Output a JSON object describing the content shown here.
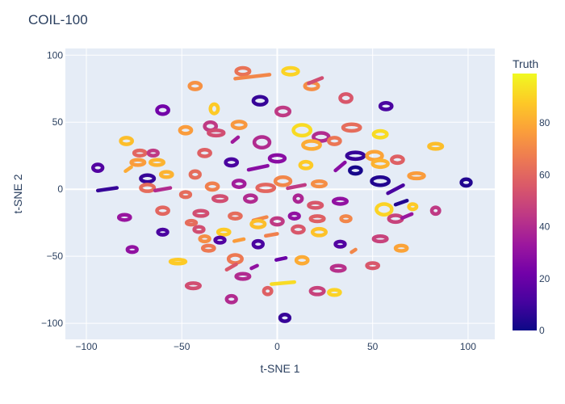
{
  "chart_data": {
    "type": "scatter",
    "title": "COIL-100",
    "xlabel": "t-SNE 1",
    "ylabel": "t-SNE 2",
    "xlim": [
      -111,
      114
    ],
    "ylim": [
      -112,
      105
    ],
    "x_ticks": [
      -100,
      -50,
      0,
      50,
      100
    ],
    "y_ticks": [
      -100,
      -50,
      0,
      50,
      100
    ],
    "x_tick_labels": [
      "−100",
      "−50",
      "0",
      "50",
      "100"
    ],
    "y_tick_labels": [
      "−100",
      "−50",
      "0",
      "50",
      "100"
    ],
    "grid": true,
    "colorbar": {
      "title": "Truth",
      "range": [
        0,
        99
      ],
      "ticks": [
        0,
        20,
        40,
        60,
        80
      ],
      "tick_labels": [
        "0",
        "20",
        "40",
        "60",
        "80"
      ],
      "colorscale": [
        "#0d0887",
        "#46039f",
        "#7201a8",
        "#9c179e",
        "#bd3786",
        "#d8576b",
        "#ed7953",
        "#fb9f3a",
        "#fdca26",
        "#f0f921"
      ]
    },
    "clusters": [
      {
        "x": -43,
        "y": 77,
        "value": 73,
        "shape": "ring",
        "w": 6,
        "h": 5
      },
      {
        "x": -18,
        "y": 88,
        "value": 64,
        "shape": "ring",
        "w": 7,
        "h": 5
      },
      {
        "x": -13,
        "y": 84,
        "value": 70,
        "shape": "stroke",
        "w": 18,
        "h": 6
      },
      {
        "x": 7,
        "y": 88,
        "value": 90,
        "shape": "ring",
        "w": 8,
        "h": 5
      },
      {
        "x": 18,
        "y": 77,
        "value": 72,
        "shape": "ring",
        "w": 7,
        "h": 5
      },
      {
        "x": 20,
        "y": 81,
        "value": 52,
        "shape": "stroke",
        "w": 7,
        "h": 8
      },
      {
        "x": -9,
        "y": 66,
        "value": 8,
        "shape": "ring",
        "w": 7,
        "h": 6
      },
      {
        "x": -60,
        "y": 59,
        "value": 22,
        "shape": "ring",
        "w": 6,
        "h": 6
      },
      {
        "x": -33,
        "y": 60,
        "value": 88,
        "shape": "ring",
        "w": 4,
        "h": 7
      },
      {
        "x": 3,
        "y": 58,
        "value": 45,
        "shape": "ring",
        "w": 7,
        "h": 6
      },
      {
        "x": 36,
        "y": 68,
        "value": 55,
        "shape": "ring",
        "w": 6,
        "h": 6
      },
      {
        "x": 57,
        "y": 62,
        "value": 12,
        "shape": "ring",
        "w": 6,
        "h": 5
      },
      {
        "x": -35,
        "y": 47,
        "value": 45,
        "shape": "ring",
        "w": 6,
        "h": 6
      },
      {
        "x": -20,
        "y": 48,
        "value": 75,
        "shape": "ring",
        "w": 7,
        "h": 5
      },
      {
        "x": -48,
        "y": 44,
        "value": 76,
        "shape": "ring",
        "w": 6,
        "h": 5
      },
      {
        "x": -32,
        "y": 42,
        "value": 52,
        "shape": "ring",
        "w": 8,
        "h": 4
      },
      {
        "x": 39,
        "y": 46,
        "value": 62,
        "shape": "ring",
        "w": 9,
        "h": 5
      },
      {
        "x": 54,
        "y": 41,
        "value": 92,
        "shape": "ring",
        "w": 7,
        "h": 5
      },
      {
        "x": -79,
        "y": 36,
        "value": 85,
        "shape": "ring",
        "w": 6,
        "h": 5
      },
      {
        "x": -8,
        "y": 35,
        "value": 40,
        "shape": "ring",
        "w": 8,
        "h": 8
      },
      {
        "x": -22,
        "y": 37,
        "value": 34,
        "shape": "stroke",
        "w": 3,
        "h": 7
      },
      {
        "x": 13,
        "y": 44,
        "value": 92,
        "shape": "ring",
        "w": 9,
        "h": 8
      },
      {
        "x": 23,
        "y": 39,
        "value": 40,
        "shape": "ring",
        "w": 8,
        "h": 6
      },
      {
        "x": 18,
        "y": 33,
        "value": 80,
        "shape": "ring",
        "w": 9,
        "h": 6
      },
      {
        "x": 30,
        "y": 36,
        "value": 65,
        "shape": "ring",
        "w": 6,
        "h": 5
      },
      {
        "x": 83,
        "y": 32,
        "value": 85,
        "shape": "ring",
        "w": 7,
        "h": 4
      },
      {
        "x": -72,
        "y": 27,
        "value": 60,
        "shape": "ring",
        "w": 6,
        "h": 4
      },
      {
        "x": -65,
        "y": 27,
        "value": 45,
        "shape": "ring",
        "w": 5,
        "h": 4
      },
      {
        "x": -38,
        "y": 27,
        "value": 58,
        "shape": "ring",
        "w": 6,
        "h": 5
      },
      {
        "x": -63,
        "y": 20,
        "value": 82,
        "shape": "ring",
        "w": 7,
        "h": 4
      },
      {
        "x": -73,
        "y": 20,
        "value": 76,
        "shape": "ring",
        "w": 7,
        "h": 4
      },
      {
        "x": 0,
        "y": 23,
        "value": 28,
        "shape": "ring",
        "w": 8,
        "h": 5
      },
      {
        "x": -24,
        "y": 20,
        "value": 12,
        "shape": "ring",
        "w": 6,
        "h": 5
      },
      {
        "x": -10,
        "y": 16,
        "value": 28,
        "shape": "stroke",
        "w": 10,
        "h": 6
      },
      {
        "x": 15,
        "y": 18,
        "value": 88,
        "shape": "ring",
        "w": 6,
        "h": 5
      },
      {
        "x": 41,
        "y": 25,
        "value": 8,
        "shape": "ring",
        "w": 9,
        "h": 5
      },
      {
        "x": 51,
        "y": 25,
        "value": 78,
        "shape": "ring",
        "w": 8,
        "h": 6
      },
      {
        "x": 63,
        "y": 22,
        "value": 58,
        "shape": "ring",
        "w": 6,
        "h": 5
      },
      {
        "x": 54,
        "y": 19,
        "value": 82,
        "shape": "ring",
        "w": 8,
        "h": 5
      },
      {
        "x": 33,
        "y": 17,
        "value": 28,
        "shape": "stroke",
        "w": 5,
        "h": 12
      },
      {
        "x": 41,
        "y": 14,
        "value": 2,
        "shape": "ring",
        "w": 6,
        "h": 5
      },
      {
        "x": -94,
        "y": 16,
        "value": 14,
        "shape": "ring",
        "w": 5,
        "h": 5
      },
      {
        "x": -78,
        "y": 15,
        "value": 80,
        "shape": "stroke",
        "w": 3,
        "h": 6
      },
      {
        "x": -68,
        "y": 8,
        "value": 8,
        "shape": "ring",
        "w": 7,
        "h": 5
      },
      {
        "x": -58,
        "y": 11,
        "value": 82,
        "shape": "ring",
        "w": 6,
        "h": 4
      },
      {
        "x": -43,
        "y": 11,
        "value": 62,
        "shape": "ring",
        "w": 5,
        "h": 5
      },
      {
        "x": 3,
        "y": 6,
        "value": 70,
        "shape": "ring",
        "w": 8,
        "h": 6
      },
      {
        "x": 54,
        "y": 6,
        "value": 4,
        "shape": "ring",
        "w": 9,
        "h": 6
      },
      {
        "x": 73,
        "y": 10,
        "value": 76,
        "shape": "ring",
        "w": 8,
        "h": 4
      },
      {
        "x": 99,
        "y": 5,
        "value": 4,
        "shape": "ring",
        "w": 5,
        "h": 5
      },
      {
        "x": -68,
        "y": 1,
        "value": 62,
        "shape": "ring",
        "w": 7,
        "h": 5
      },
      {
        "x": -60,
        "y": 0,
        "value": 40,
        "shape": "stroke",
        "w": 8,
        "h": 4
      },
      {
        "x": -34,
        "y": 2,
        "value": 68,
        "shape": "ring",
        "w": 6,
        "h": 5
      },
      {
        "x": -20,
        "y": 4,
        "value": 35,
        "shape": "ring",
        "w": 6,
        "h": 5
      },
      {
        "x": -6,
        "y": 1,
        "value": 60,
        "shape": "ring",
        "w": 9,
        "h": 5
      },
      {
        "x": 10,
        "y": 2,
        "value": 45,
        "shape": "stroke",
        "w": 9,
        "h": 5
      },
      {
        "x": 22,
        "y": 4,
        "value": 72,
        "shape": "ring",
        "w": 7,
        "h": 4
      },
      {
        "x": 62,
        "y": 0,
        "value": 12,
        "shape": "stroke",
        "w": 8,
        "h": 12
      },
      {
        "x": -89,
        "y": 0,
        "value": 8,
        "shape": "stroke",
        "w": 10,
        "h": 4
      },
      {
        "x": -48,
        "y": -4,
        "value": 62,
        "shape": "ring",
        "w": 5,
        "h": 4
      },
      {
        "x": -30,
        "y": -7,
        "value": 52,
        "shape": "ring",
        "w": 7,
        "h": 4
      },
      {
        "x": -14,
        "y": -7,
        "value": 40,
        "shape": "ring",
        "w": 6,
        "h": 5
      },
      {
        "x": 11,
        "y": -7,
        "value": 38,
        "shape": "ring",
        "w": 4,
        "h": 5
      },
      {
        "x": 20,
        "y": -12,
        "value": 55,
        "shape": "ring",
        "w": 7,
        "h": 4
      },
      {
        "x": 33,
        "y": -9,
        "value": 30,
        "shape": "ring",
        "w": 7,
        "h": 4
      },
      {
        "x": 56,
        "y": -15,
        "value": 90,
        "shape": "ring",
        "w": 8,
        "h": 8
      },
      {
        "x": 65,
        "y": -10,
        "value": 4,
        "shape": "stroke",
        "w": 6,
        "h": 6
      },
      {
        "x": 71,
        "y": -13,
        "value": 88,
        "shape": "ring",
        "w": 4,
        "h": 4
      },
      {
        "x": -80,
        "y": -21,
        "value": 32,
        "shape": "ring",
        "w": 6,
        "h": 4
      },
      {
        "x": -60,
        "y": -16,
        "value": 60,
        "shape": "ring",
        "w": 6,
        "h": 5
      },
      {
        "x": -40,
        "y": -18,
        "value": 52,
        "shape": "ring",
        "w": 7,
        "h": 4
      },
      {
        "x": -22,
        "y": -20,
        "value": 62,
        "shape": "ring",
        "w": 6,
        "h": 4
      },
      {
        "x": -9,
        "y": -22,
        "value": 70,
        "shape": "stroke",
        "w": 7,
        "h": 5
      },
      {
        "x": 0,
        "y": -24,
        "value": 45,
        "shape": "ring",
        "w": 6,
        "h": 5
      },
      {
        "x": 9,
        "y": -20,
        "value": 30,
        "shape": "ring",
        "w": 5,
        "h": 4
      },
      {
        "x": 21,
        "y": -22,
        "value": 58,
        "shape": "ring",
        "w": 7,
        "h": 4
      },
      {
        "x": 36,
        "y": -22,
        "value": 70,
        "shape": "ring",
        "w": 5,
        "h": 4
      },
      {
        "x": 62,
        "y": -22,
        "value": 48,
        "shape": "ring",
        "w": 7,
        "h": 5
      },
      {
        "x": 68,
        "y": -20,
        "value": 32,
        "shape": "stroke",
        "w": 5,
        "h": 6
      },
      {
        "x": 83,
        "y": -16,
        "value": 45,
        "shape": "ring",
        "w": 4,
        "h": 5
      },
      {
        "x": -10,
        "y": -26,
        "value": 85,
        "shape": "ring",
        "w": 7,
        "h": 5
      },
      {
        "x": -45,
        "y": -25,
        "value": 62,
        "shape": "ring",
        "w": 5,
        "h": 3
      },
      {
        "x": -60,
        "y": -32,
        "value": 12,
        "shape": "ring",
        "w": 5,
        "h": 4
      },
      {
        "x": -41,
        "y": -30,
        "value": 52,
        "shape": "ring",
        "w": 5,
        "h": 4
      },
      {
        "x": -28,
        "y": -32,
        "value": 88,
        "shape": "ring",
        "w": 6,
        "h": 4
      },
      {
        "x": -38,
        "y": -37,
        "value": 72,
        "shape": "ring",
        "w": 5,
        "h": 4
      },
      {
        "x": -30,
        "y": -38,
        "value": 14,
        "shape": "ring",
        "w": 5,
        "h": 4
      },
      {
        "x": -20,
        "y": -38,
        "value": 76,
        "shape": "stroke",
        "w": 5,
        "h": 3
      },
      {
        "x": -3,
        "y": -34,
        "value": 68,
        "shape": "stroke",
        "w": 6,
        "h": 3
      },
      {
        "x": 11,
        "y": -30,
        "value": 55,
        "shape": "ring",
        "w": 6,
        "h": 5
      },
      {
        "x": 22,
        "y": -32,
        "value": 86,
        "shape": "ring",
        "w": 7,
        "h": 5
      },
      {
        "x": 54,
        "y": -37,
        "value": 48,
        "shape": "ring",
        "w": 7,
        "h": 4
      },
      {
        "x": 65,
        "y": -44,
        "value": 78,
        "shape": "ring",
        "w": 6,
        "h": 4
      },
      {
        "x": -76,
        "y": -45,
        "value": 30,
        "shape": "ring",
        "w": 5,
        "h": 4
      },
      {
        "x": -52,
        "y": -54,
        "value": 88,
        "shape": "ring",
        "w": 8,
        "h": 3
      },
      {
        "x": -36,
        "y": -44,
        "value": 66,
        "shape": "ring",
        "w": 6,
        "h": 4
      },
      {
        "x": -10,
        "y": -41,
        "value": 12,
        "shape": "ring",
        "w": 5,
        "h": 5
      },
      {
        "x": 33,
        "y": -41,
        "value": 14,
        "shape": "ring",
        "w": 5,
        "h": 4
      },
      {
        "x": 40,
        "y": -46,
        "value": 70,
        "shape": "stroke",
        "w": 2,
        "h": 4
      },
      {
        "x": -22,
        "y": -52,
        "value": 66,
        "shape": "ring",
        "w": 7,
        "h": 6
      },
      {
        "x": -24,
        "y": -58,
        "value": 55,
        "shape": "stroke",
        "w": 5,
        "h": 8
      },
      {
        "x": -12,
        "y": -58,
        "value": 30,
        "shape": "stroke",
        "w": 3,
        "h": 4
      },
      {
        "x": 2,
        "y": -52,
        "value": 20,
        "shape": "stroke",
        "w": 5,
        "h": 3
      },
      {
        "x": 13,
        "y": -53,
        "value": 80,
        "shape": "ring",
        "w": 6,
        "h": 5
      },
      {
        "x": 32,
        "y": -59,
        "value": 42,
        "shape": "ring",
        "w": 7,
        "h": 4
      },
      {
        "x": 50,
        "y": -57,
        "value": 55,
        "shape": "ring",
        "w": 6,
        "h": 4
      },
      {
        "x": -18,
        "y": -65,
        "value": 40,
        "shape": "ring",
        "w": 7,
        "h": 4
      },
      {
        "x": -44,
        "y": -72,
        "value": 52,
        "shape": "ring",
        "w": 7,
        "h": 4
      },
      {
        "x": 3,
        "y": -70,
        "value": 92,
        "shape": "stroke",
        "w": 12,
        "h": 3
      },
      {
        "x": -5,
        "y": -76,
        "value": 58,
        "shape": "ring",
        "w": 4,
        "h": 5
      },
      {
        "x": 21,
        "y": -76,
        "value": 48,
        "shape": "ring",
        "w": 7,
        "h": 5
      },
      {
        "x": 30,
        "y": -77,
        "value": 90,
        "shape": "ring",
        "w": 6,
        "h": 4
      },
      {
        "x": -24,
        "y": -82,
        "value": 40,
        "shape": "ring",
        "w": 5,
        "h": 5
      },
      {
        "x": 4,
        "y": -96,
        "value": 8,
        "shape": "ring",
        "w": 5,
        "h": 5
      }
    ]
  }
}
